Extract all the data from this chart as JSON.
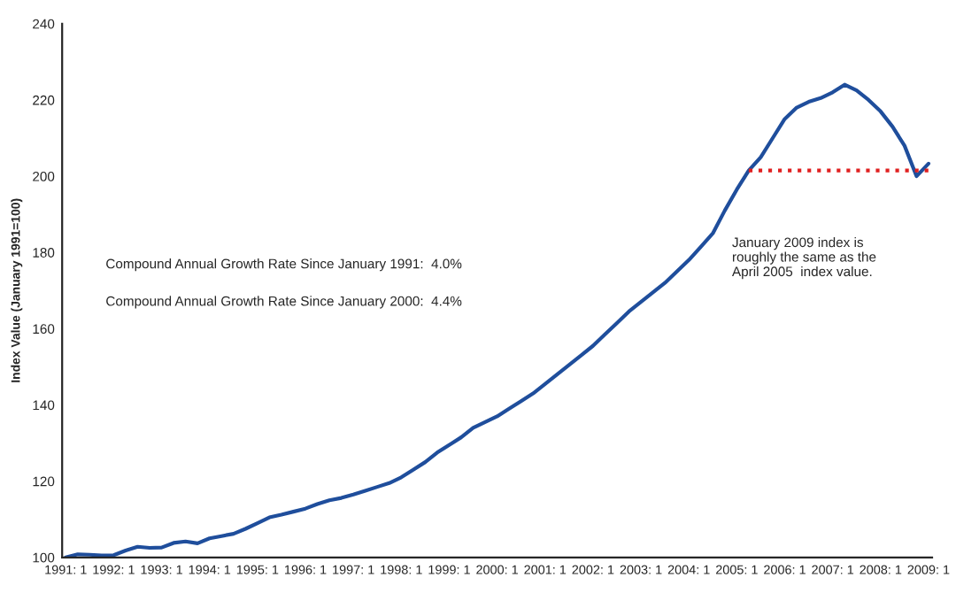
{
  "chart_data": {
    "type": "line",
    "ylabel": "Index Value (January 1991=100)",
    "ylim": [
      100,
      240
    ],
    "yticks": [
      100,
      120,
      140,
      160,
      180,
      200,
      220,
      240
    ],
    "categories": [
      "1991: 1",
      null,
      null,
      null,
      "1992: 1",
      null,
      null,
      null,
      "1993: 1",
      null,
      null,
      null,
      "1994: 1",
      null,
      null,
      null,
      "1995: 1",
      null,
      null,
      null,
      "1996: 1",
      null,
      null,
      null,
      "1997: 1",
      null,
      null,
      null,
      "1998: 1",
      null,
      null,
      null,
      "1999: 1",
      null,
      null,
      null,
      "2000: 1",
      null,
      null,
      null,
      "2001: 1",
      null,
      null,
      null,
      "2002: 1",
      null,
      null,
      null,
      "2003: 1",
      null,
      null,
      null,
      "2004: 1",
      null,
      null,
      null,
      "2005: 1",
      null,
      null,
      null,
      "2006: 1",
      null,
      null,
      null,
      "2007: 1",
      null,
      null,
      null,
      "2008: 1",
      null,
      null,
      null,
      "2009: 1"
    ],
    "grid": false,
    "legend": false,
    "series": [
      {
        "color": "#1f4e9c",
        "line_style": "solid",
        "values": [
          100,
          100.8,
          100.7,
          100.5,
          100.6,
          101.8,
          102.8,
          102.5,
          102.6,
          103.8,
          104.2,
          103.7,
          105.0,
          105.6,
          106.2,
          107.5,
          109.0,
          110.5,
          111.2,
          112.0,
          112.8,
          114.0,
          115.0,
          115.6,
          116.5,
          117.5,
          118.5,
          119.5,
          121.0,
          123.0,
          125.0,
          127.5,
          129.5,
          131.5,
          134.0,
          135.5,
          137.0,
          139.0,
          141.0,
          143.0,
          145.5,
          148.0,
          150.5,
          153.0,
          155.5,
          158.5,
          161.5,
          164.5,
          167.0,
          169.5,
          172.0,
          175.0,
          178.0,
          181.5,
          185.0,
          191.0,
          196.5,
          201.5,
          205.0,
          210.0,
          215.0,
          218.0,
          219.5,
          220.5,
          222.0,
          224.0,
          222.5,
          220.0,
          217.0,
          213.0,
          208.0,
          200.0,
          203.3
        ]
      },
      {
        "type": "line",
        "color": "#e02020",
        "line_style": "dotted",
        "values": [
          null,
          null,
          null,
          null,
          null,
          null,
          null,
          null,
          null,
          null,
          null,
          null,
          null,
          null,
          null,
          null,
          null,
          null,
          null,
          null,
          null,
          null,
          null,
          null,
          null,
          null,
          null,
          null,
          null,
          null,
          null,
          null,
          null,
          null,
          null,
          null,
          null,
          null,
          null,
          null,
          null,
          null,
          null,
          null,
          null,
          null,
          null,
          null,
          null,
          null,
          null,
          null,
          null,
          null,
          null,
          null,
          null,
          201.5,
          201.5,
          201.5,
          201.5,
          201.5,
          201.5,
          201.5,
          201.5,
          201.5,
          201.5,
          201.5,
          201.5,
          201.5,
          201.5,
          201.5,
          201.5
        ]
      }
    ],
    "annotations": [
      "Compound Annual Growth Rate Since January 1991:  4.0%",
      "Compound Annual Growth Rate Since January 2000:  4.4%",
      "January 2009 index is\nroughly the same as the\nApril 2005  index value."
    ]
  }
}
